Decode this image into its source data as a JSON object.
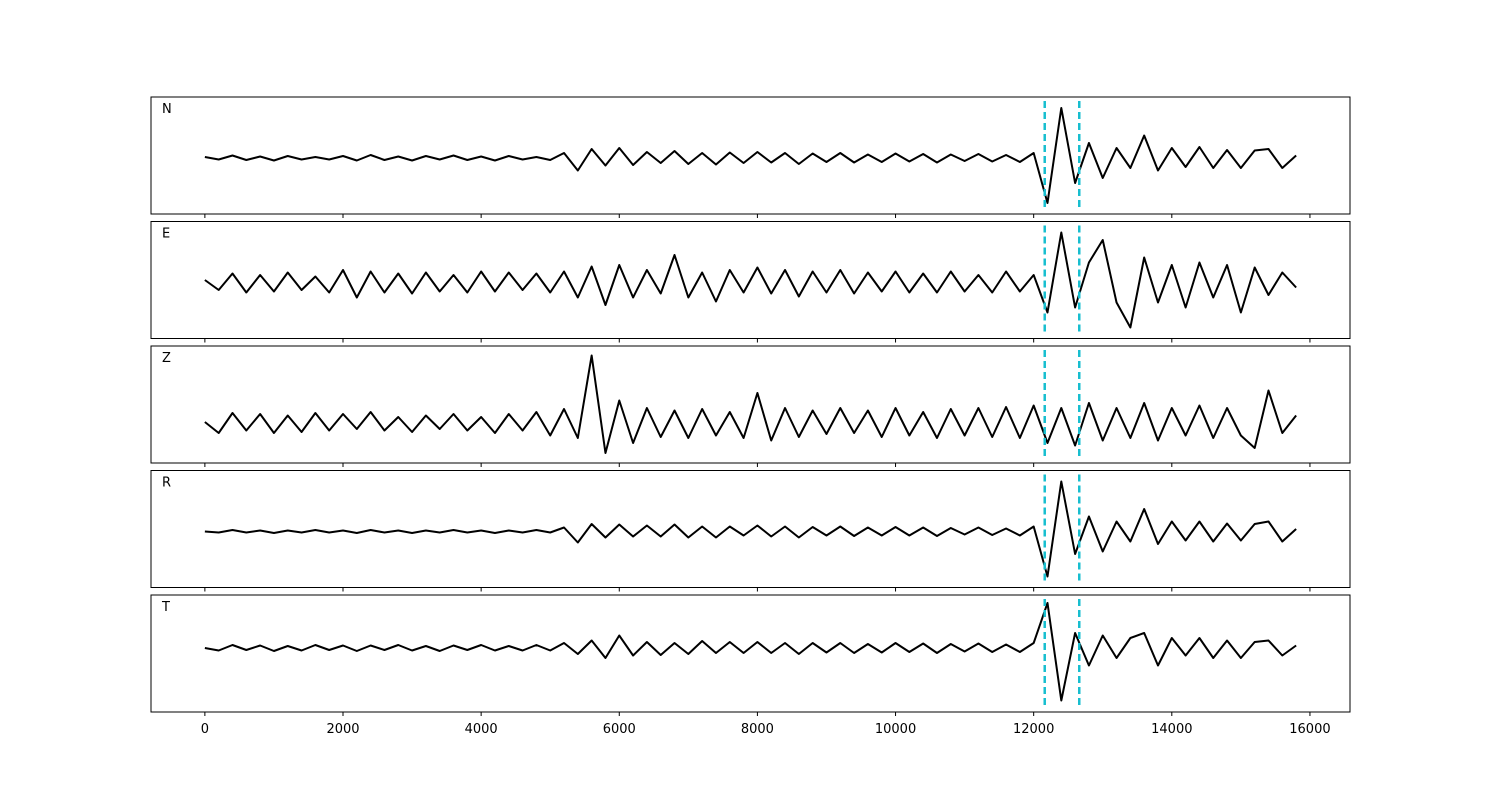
{
  "chart_data": {
    "type": "line",
    "color": "#000000",
    "vline_color": "#17becf",
    "xlim": [
      -780,
      16580
    ],
    "xticks": [
      0,
      2000,
      4000,
      6000,
      8000,
      10000,
      12000,
      14000,
      16000
    ],
    "vlines": [
      12160,
      12660
    ],
    "x": [
      0,
      200,
      400,
      600,
      800,
      1000,
      1200,
      1400,
      1600,
      1800,
      2000,
      2200,
      2400,
      2600,
      2800,
      3000,
      3200,
      3400,
      3600,
      3800,
      4000,
      4200,
      4400,
      4600,
      4800,
      5000,
      5200,
      5400,
      5600,
      5800,
      6000,
      6200,
      6400,
      6600,
      6800,
      7000,
      7200,
      7400,
      7600,
      7800,
      8000,
      8200,
      8400,
      8600,
      8800,
      9000,
      9200,
      9400,
      9600,
      9800,
      10000,
      10200,
      10400,
      10600,
      10800,
      11000,
      11200,
      11400,
      11600,
      11800,
      12000,
      12200,
      12400,
      12600,
      12800,
      13000,
      13200,
      13400,
      13600,
      13800,
      14000,
      14200,
      14400,
      14600,
      14800,
      15000,
      15200,
      15400,
      15600,
      15800
    ],
    "series": [
      {
        "name": "N",
        "ylim": [
          -1.12,
          1.22
        ],
        "values": [
          0.02,
          -0.03,
          0.05,
          -0.04,
          0.03,
          -0.05,
          0.04,
          -0.03,
          0.02,
          -0.03,
          0.04,
          -0.05,
          0.06,
          -0.04,
          0.03,
          -0.05,
          0.04,
          -0.03,
          0.05,
          -0.04,
          0.03,
          -0.05,
          0.04,
          -0.03,
          0.02,
          -0.04,
          0.1,
          -0.25,
          0.18,
          -0.15,
          0.2,
          -0.14,
          0.12,
          -0.1,
          0.14,
          -0.12,
          0.1,
          -0.13,
          0.11,
          -0.1,
          0.12,
          -0.09,
          0.1,
          -0.12,
          0.09,
          -0.08,
          0.1,
          -0.09,
          0.07,
          -0.08,
          0.09,
          -0.07,
          0.08,
          -0.09,
          0.07,
          -0.06,
          0.08,
          -0.07,
          0.06,
          -0.08,
          0.1,
          -0.9,
          1.0,
          -0.5,
          0.3,
          -0.4,
          0.2,
          -0.2,
          0.45,
          -0.25,
          0.2,
          -0.18,
          0.22,
          -0.2,
          0.16,
          -0.2,
          0.15,
          0.18,
          -0.2,
          0.05
        ]
      },
      {
        "name": "E",
        "ylim": [
          -1.12,
          1.22
        ],
        "values": [
          0.05,
          -0.15,
          0.18,
          -0.2,
          0.15,
          -0.18,
          0.2,
          -0.15,
          0.12,
          -0.2,
          0.25,
          -0.3,
          0.22,
          -0.2,
          0.18,
          -0.22,
          0.2,
          -0.18,
          0.15,
          -0.2,
          0.22,
          -0.18,
          0.2,
          -0.15,
          0.18,
          -0.2,
          0.22,
          -0.3,
          0.32,
          -0.45,
          0.35,
          -0.3,
          0.25,
          -0.22,
          0.55,
          -0.3,
          0.2,
          -0.38,
          0.25,
          -0.2,
          0.3,
          -0.22,
          0.25,
          -0.28,
          0.22,
          -0.2,
          0.25,
          -0.22,
          0.2,
          -0.18,
          0.22,
          -0.2,
          0.18,
          -0.2,
          0.22,
          -0.18,
          0.15,
          -0.2,
          0.22,
          -0.18,
          0.15,
          -0.6,
          1.0,
          -0.5,
          0.4,
          0.85,
          -0.4,
          -0.9,
          0.5,
          -0.4,
          0.35,
          -0.5,
          0.4,
          -0.3,
          0.35,
          -0.6,
          0.3,
          -0.25,
          0.2,
          -0.1
        ]
      },
      {
        "name": "Z",
        "ylim": [
          -0.8,
          1.54
        ],
        "values": [
          0.02,
          -0.2,
          0.2,
          -0.15,
          0.18,
          -0.2,
          0.15,
          -0.18,
          0.2,
          -0.15,
          0.18,
          -0.12,
          0.22,
          -0.15,
          0.12,
          -0.18,
          0.15,
          -0.12,
          0.18,
          -0.15,
          0.12,
          -0.2,
          0.18,
          -0.15,
          0.22,
          -0.25,
          0.28,
          -0.3,
          1.35,
          -0.6,
          0.45,
          -0.4,
          0.3,
          -0.28,
          0.25,
          -0.3,
          0.28,
          -0.25,
          0.22,
          -0.3,
          0.6,
          -0.35,
          0.3,
          -0.28,
          0.25,
          -0.22,
          0.3,
          -0.2,
          0.25,
          -0.28,
          0.3,
          -0.25,
          0.22,
          -0.3,
          0.28,
          -0.25,
          0.3,
          -0.28,
          0.32,
          -0.3,
          0.35,
          -0.4,
          0.3,
          -0.45,
          0.4,
          -0.35,
          0.3,
          -0.3,
          0.4,
          -0.35,
          0.3,
          -0.25,
          0.35,
          -0.3,
          0.3,
          -0.25,
          -0.5,
          0.65,
          -0.2,
          0.15
        ]
      },
      {
        "name": "R",
        "ylim": [
          -1.12,
          1.22
        ],
        "values": [
          0.0,
          -0.02,
          0.03,
          -0.02,
          0.02,
          -0.03,
          0.02,
          -0.02,
          0.03,
          -0.02,
          0.02,
          -0.03,
          0.03,
          -0.02,
          0.02,
          -0.03,
          0.02,
          -0.02,
          0.03,
          -0.02,
          0.02,
          -0.03,
          0.02,
          -0.02,
          0.03,
          -0.02,
          0.08,
          -0.22,
          0.15,
          -0.12,
          0.14,
          -0.1,
          0.12,
          -0.1,
          0.14,
          -0.12,
          0.1,
          -0.12,
          0.1,
          -0.08,
          0.12,
          -0.1,
          0.1,
          -0.12,
          0.09,
          -0.08,
          0.1,
          -0.09,
          0.08,
          -0.08,
          0.09,
          -0.08,
          0.08,
          -0.09,
          0.07,
          -0.06,
          0.08,
          -0.07,
          0.06,
          -0.08,
          0.1,
          -0.9,
          1.0,
          -0.45,
          0.3,
          -0.4,
          0.2,
          -0.2,
          0.45,
          -0.25,
          0.2,
          -0.18,
          0.2,
          -0.2,
          0.16,
          -0.18,
          0.15,
          0.2,
          -0.2,
          0.05
        ]
      },
      {
        "name": "T",
        "ylim": [
          -1.28,
          1.06
        ],
        "values": [
          0.0,
          -0.05,
          0.06,
          -0.04,
          0.05,
          -0.06,
          0.04,
          -0.05,
          0.06,
          -0.04,
          0.05,
          -0.06,
          0.05,
          -0.04,
          0.06,
          -0.05,
          0.04,
          -0.06,
          0.05,
          -0.04,
          0.06,
          -0.05,
          0.04,
          -0.05,
          0.06,
          -0.05,
          0.1,
          -0.12,
          0.15,
          -0.2,
          0.25,
          -0.15,
          0.12,
          -0.14,
          0.1,
          -0.12,
          0.14,
          -0.1,
          0.12,
          -0.1,
          0.12,
          -0.1,
          0.1,
          -0.12,
          0.1,
          -0.09,
          0.1,
          -0.1,
          0.08,
          -0.09,
          0.1,
          -0.08,
          0.09,
          -0.1,
          0.08,
          -0.07,
          0.09,
          -0.08,
          0.07,
          -0.08,
          0.1,
          0.9,
          -1.05,
          0.3,
          -0.35,
          0.25,
          -0.2,
          0.2,
          0.3,
          -0.35,
          0.2,
          -0.15,
          0.2,
          -0.2,
          0.15,
          -0.2,
          0.12,
          0.15,
          -0.15,
          0.05
        ]
      }
    ]
  }
}
